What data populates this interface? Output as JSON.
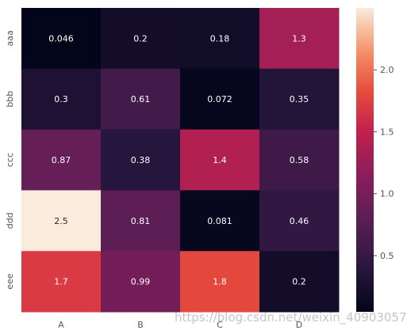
{
  "chart_data": {
    "type": "heatmap",
    "title": "",
    "xlabel": "",
    "ylabel": "",
    "x_categories": [
      "A",
      "B",
      "C",
      "D"
    ],
    "y_categories": [
      "aaa",
      "bbb",
      "ccc",
      "ddd",
      "eee"
    ],
    "values": [
      [
        0.046,
        0.2,
        0.18,
        1.3
      ],
      [
        0.3,
        0.61,
        0.072,
        0.35
      ],
      [
        0.87,
        0.38,
        1.4,
        0.58
      ],
      [
        2.5,
        0.81,
        0.081,
        0.46
      ],
      [
        1.7,
        0.99,
        1.8,
        0.2
      ]
    ],
    "annotations": true,
    "colormap": "rocket",
    "colorbar": {
      "range": [
        0.046,
        2.5
      ],
      "ticks": [
        0.5,
        1.0,
        1.5,
        2.0
      ],
      "tick_labels": [
        "0.5",
        "1.0",
        "1.5",
        "2.0"
      ],
      "placement": "right"
    }
  },
  "watermark": "https://blog.csdn.net/weixin_40903057"
}
